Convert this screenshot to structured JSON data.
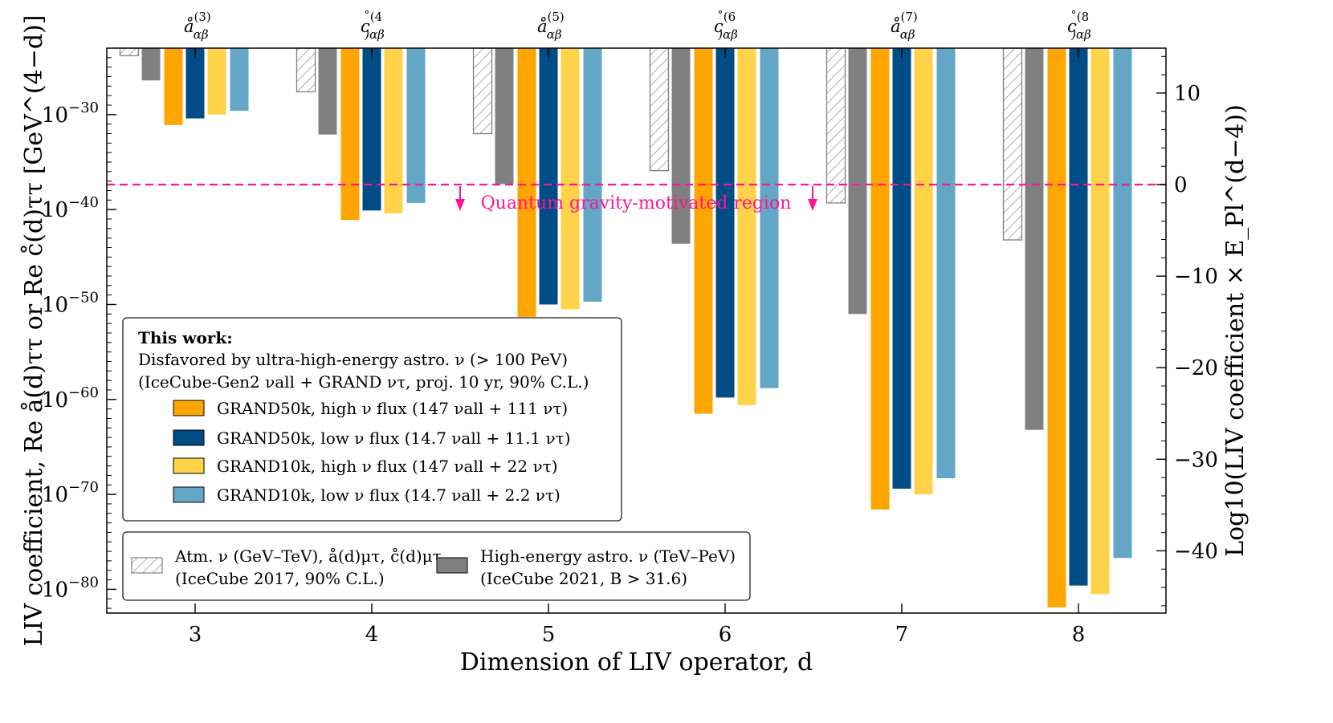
{
  "chart_data": {
    "type": "bar",
    "title": "",
    "xlabel": "Dimension of LIV operator, d",
    "ylabel_left": "LIV coefficient, Re å(d)ττ or Re c̊(d)ττ [GeV^(4−d)]",
    "ylabel_right": "Log10(LIV coefficient × E_Pl^(d−4))",
    "categories": [
      3,
      4,
      5,
      6,
      7,
      8
    ],
    "top_labels": [
      "å(3)αβ",
      "c̊(4)αβ",
      "å(5)αβ",
      "c̊(6)αβ",
      "å(7)αβ",
      "c̊(8)αβ"
    ],
    "left_axis": {
      "scale": "log",
      "ticks": [
        "10^−30",
        "10^−40",
        "10^−50",
        "10^−60",
        "10^−70",
        "10^−80"
      ],
      "tick_exponents": [
        -30,
        -40,
        -50,
        -60,
        -70,
        -80
      ],
      "log10_range": [
        -82.5,
        -23.0
      ]
    },
    "right_axis": {
      "ticks": [
        10,
        0,
        -10,
        -20,
        -30,
        -40
      ],
      "range": [
        -46.8,
        14.9
      ]
    },
    "series": [
      {
        "name": "Atm. ν (GeV–TeV), å(d)μτ, c̊(d)μτ (IceCube 2017, 90% C.L.)",
        "color": "#ffffff",
        "hatch": true,
        "values_log10": [
          -23.8,
          -27.6,
          -32.0,
          -35.9,
          -39.3,
          -43.2
        ]
      },
      {
        "name": "High-energy astro. ν (TeV–PeV) (IceCube 2021, B > 31.6)",
        "color": "#808080",
        "values_log10": [
          -26.4,
          -32.1,
          -37.3,
          -43.6,
          -51.0,
          -63.2
        ]
      },
      {
        "name": "GRAND50k, high ν flux (147 νall + 111 ντ)",
        "color": "#FFA500",
        "values_log10": [
          -31.1,
          -41.1,
          -51.3,
          -61.5,
          -71.6,
          -81.9
        ]
      },
      {
        "name": "GRAND50k, low ν flux  (14.7 νall + 11.1 ντ)",
        "color": "#004C86",
        "values_log10": [
          -30.4,
          -40.1,
          -50.0,
          -59.8,
          -69.4,
          -79.6
        ]
      },
      {
        "name": "GRAND10k, high ν flux (147 νall + 22 ντ)",
        "color": "#FFD24A",
        "values_log10": [
          -30.0,
          -40.4,
          -50.5,
          -60.6,
          -70.0,
          -80.5
        ]
      },
      {
        "name": "GRAND10k, low ν flux  (14.7 νall + 2.2 ντ)",
        "color": "#63A6C6",
        "values_log10": [
          -29.6,
          -39.3,
          -49.7,
          -58.8,
          -68.3,
          -76.7
        ]
      }
    ],
    "reference_line": {
      "right_axis_value": 0,
      "color": "#ff1493",
      "label": "Quantum gravity-motivated region"
    },
    "legend": {
      "placement": "lower-left",
      "header_bold": "This work:",
      "header_line1": "Disfavored by ultra-high-energy astro. ν (> 100 PeV)",
      "header_line2": "(IceCube-Gen2 νall + GRAND ντ, proj. 10 yr, 90% C.L.)",
      "entries": [
        "GRAND50k, high ν flux (147 νall + 111 ντ)",
        "GRAND50k, low ν flux  (14.7 νall + 11.1 ντ)",
        "GRAND10k, high ν flux (147 νall + 22 ντ)",
        "GRAND10k, low ν flux  (14.7 νall + 2.2 ντ)"
      ],
      "atm_line1": "Atm. ν (GeV–TeV), å(d)μτ, c̊(d)μτ",
      "atm_line2": "(IceCube 2017, 90% C.L.)",
      "he_line1": "High-energy astro. ν (TeV–PeV)",
      "he_line2": "(IceCube 2021, B > 31.6)"
    }
  }
}
